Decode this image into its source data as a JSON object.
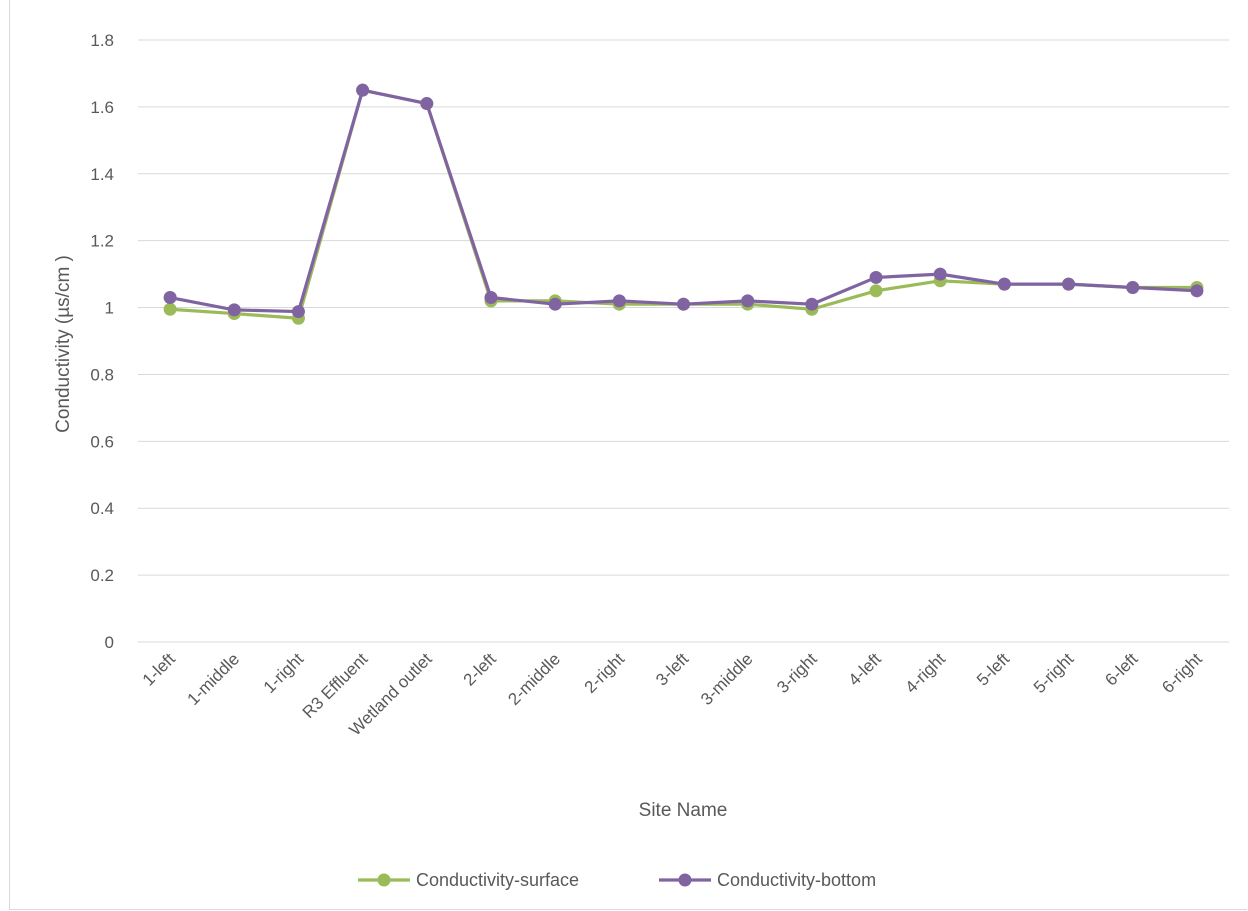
{
  "chart_data": {
    "type": "line",
    "xlabel": "Site Name",
    "ylabel": "Conductivity (µs/cm )",
    "ylim": [
      0,
      1.8
    ],
    "yticks": [
      "0",
      "0.2",
      "0.4",
      "0.6",
      "0.8",
      "1",
      "1.2",
      "1.4",
      "1.6",
      "1.8"
    ],
    "categories": [
      "1-left",
      "1-middle",
      "1-right",
      "R3 Effluent",
      "Wetland outlet",
      "2-left",
      "2-middle",
      "2-right",
      "3-left",
      "3-middle",
      "3-right",
      "4-left",
      "4-right",
      "5-left",
      "5-right",
      "6-left",
      "6-right"
    ],
    "grid": true,
    "legend_position": "bottom",
    "series": [
      {
        "name": "Conductivity-surface",
        "color": "#9BBB59",
        "values": [
          0.995,
          0.982,
          0.968,
          1.65,
          1.61,
          1.02,
          1.02,
          1.01,
          1.01,
          1.01,
          0.995,
          1.05,
          1.08,
          1.07,
          1.07,
          1.06,
          1.06
        ]
      },
      {
        "name": "Conductivity-bottom",
        "color": "#8064A2",
        "values": [
          1.03,
          0.993,
          0.988,
          1.65,
          1.61,
          1.03,
          1.01,
          1.02,
          1.01,
          1.02,
          1.01,
          1.09,
          1.1,
          1.07,
          1.07,
          1.06,
          1.05
        ]
      }
    ]
  }
}
